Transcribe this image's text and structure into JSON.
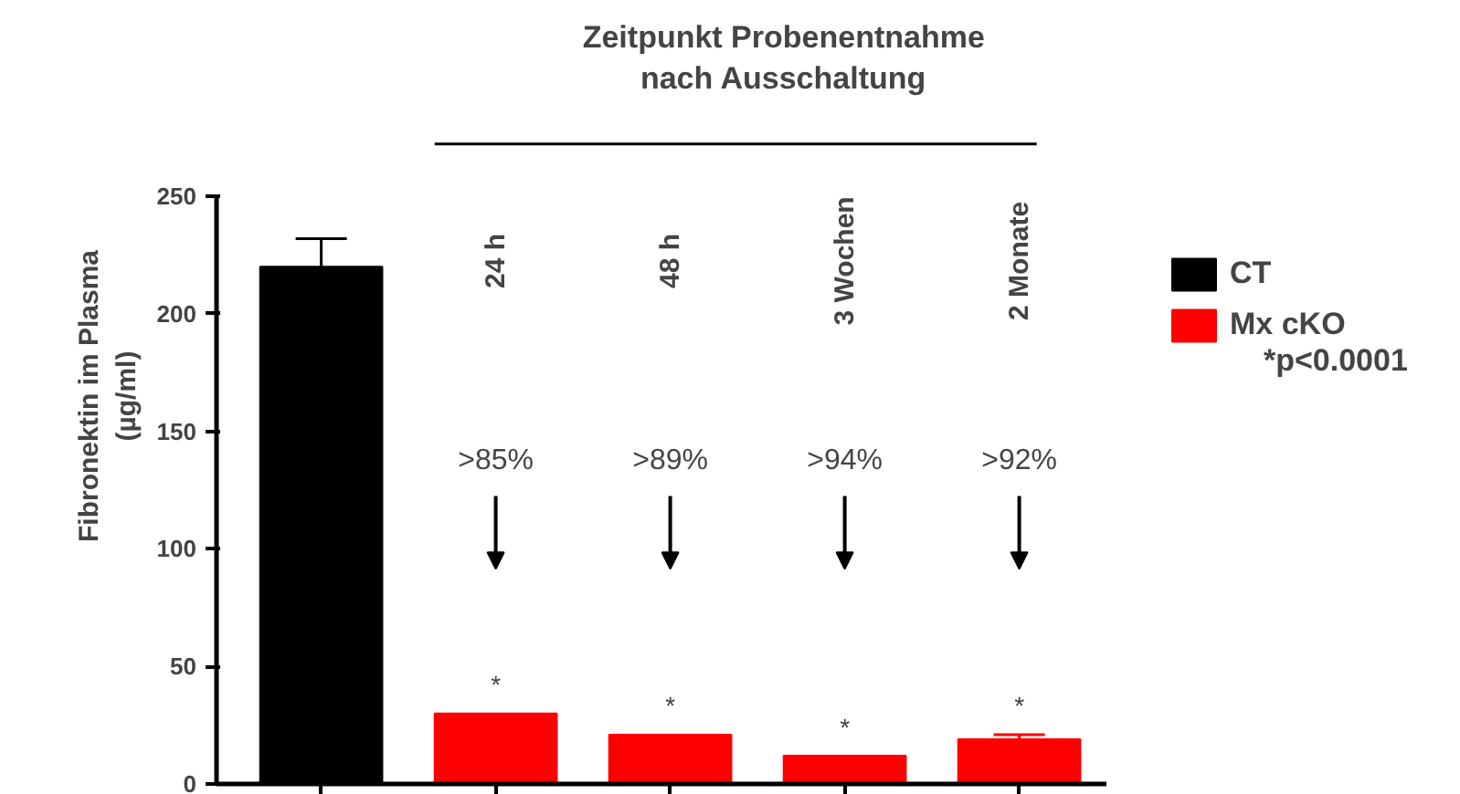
{
  "chart_data": {
    "type": "bar",
    "title": "Zeitpunkt Probenentnahme\nnach Ausschaltung",
    "categories": [
      null,
      "24 h",
      "48 h",
      "3 Wochen",
      "2 Monate"
    ],
    "series": [
      {
        "name": "CT",
        "color": "#000000",
        "values": [
          220,
          null,
          null,
          null,
          null
        ],
        "errors": [
          [
            220,
            232
          ],
          null,
          null,
          null,
          null
        ]
      },
      {
        "name": "Mx cKO",
        "color": "#ff0000",
        "values": [
          null,
          30,
          21,
          12,
          19
        ],
        "errors": [
          null,
          null,
          null,
          null,
          [
            19,
            21
          ]
        ]
      }
    ],
    "ylabel": "Fibronektin im Plasma\n(µg/ml)",
    "ylim": [
      0,
      250
    ],
    "yticks": [
      0,
      50,
      100,
      150,
      200,
      250
    ],
    "annotations": [
      ">85%",
      ">89%",
      ">94%",
      ">92%",
      "*",
      "*",
      "*",
      "*",
      "*p<0.0001"
    ],
    "legend": "right",
    "grid": false
  }
}
